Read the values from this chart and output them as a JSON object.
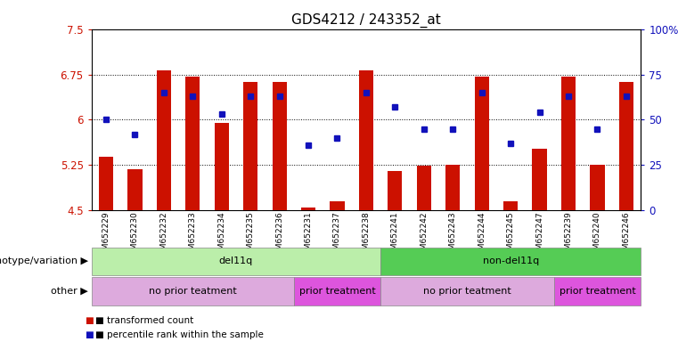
{
  "title": "GDS4212 / 243352_at",
  "samples": [
    "GSM652229",
    "GSM652230",
    "GSM652232",
    "GSM652233",
    "GSM652234",
    "GSM652235",
    "GSM652236",
    "GSM652231",
    "GSM652237",
    "GSM652238",
    "GSM652241",
    "GSM652242",
    "GSM652243",
    "GSM652244",
    "GSM652245",
    "GSM652247",
    "GSM652239",
    "GSM652240",
    "GSM652246"
  ],
  "bar_values": [
    5.38,
    5.18,
    6.82,
    6.72,
    5.95,
    6.62,
    6.62,
    4.55,
    4.65,
    6.82,
    5.15,
    5.24,
    5.25,
    6.72,
    4.65,
    5.52,
    6.72,
    5.25,
    6.62
  ],
  "blue_pct": [
    50,
    42,
    65,
    63,
    53,
    63,
    63,
    36,
    40,
    65,
    57,
    45,
    45,
    65,
    37,
    54,
    63,
    45,
    63
  ],
  "ylim_left": [
    4.5,
    7.5
  ],
  "ylim_right": [
    0,
    100
  ],
  "yticks_left": [
    4.5,
    5.25,
    6.0,
    6.75,
    7.5
  ],
  "yticks_right": [
    0,
    25,
    50,
    75,
    100
  ],
  "ytick_labels_left": [
    "4.5",
    "5.25",
    "6",
    "6.75",
    "7.5"
  ],
  "ytick_labels_right": [
    "0",
    "25",
    "50",
    "75",
    "100%"
  ],
  "bar_color": "#cc1100",
  "blue_color": "#1111bb",
  "groups": [
    {
      "label": "del11q",
      "start": 0,
      "end": 9,
      "color": "#bbeeaa"
    },
    {
      "label": "non-del11q",
      "start": 10,
      "end": 18,
      "color": "#55cc55"
    }
  ],
  "subgroups": [
    {
      "label": "no prior teatment",
      "start": 0,
      "end": 6,
      "color": "#ddaadd"
    },
    {
      "label": "prior treatment",
      "start": 7,
      "end": 9,
      "color": "#dd55dd"
    },
    {
      "label": "no prior teatment",
      "start": 10,
      "end": 15,
      "color": "#ddaadd"
    },
    {
      "label": "prior treatment",
      "start": 16,
      "end": 18,
      "color": "#dd55dd"
    }
  ],
  "group_row_label": "genotype/variation",
  "subgroup_row_label": "other",
  "legend_red": "transformed count",
  "legend_blue": "percentile rank within the sample",
  "tick_color_left": "#cc1100",
  "tick_color_right": "#1111bb"
}
